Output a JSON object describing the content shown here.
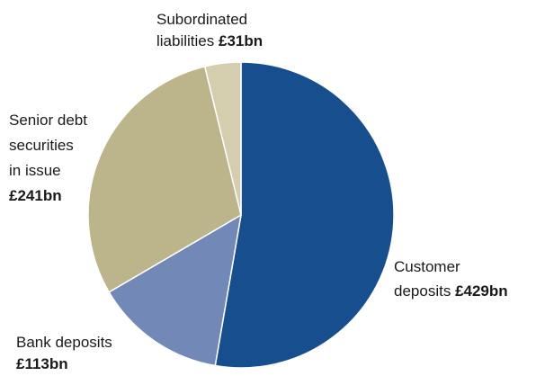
{
  "chart_data": {
    "type": "pie",
    "unit": "£bn",
    "slices": [
      {
        "key": "customer",
        "label": "Customer deposits",
        "value": 429,
        "display": "£429bn",
        "color": "#174f8e"
      },
      {
        "key": "bank",
        "label": "Bank deposits",
        "value": 113,
        "display": "£113bn",
        "color": "#7289b8"
      },
      {
        "key": "senior",
        "label": "Senior debt securities in issue",
        "value": 241,
        "display": "£241bn",
        "color": "#bcb48a"
      },
      {
        "key": "sub",
        "label": "Subordinated liabilities",
        "value": 31,
        "display": "£31bn",
        "color": "#d4cdae"
      }
    ],
    "label_lines": {
      "customer": [
        "Customer",
        "deposits"
      ],
      "bank": [
        "Bank deposits"
      ],
      "senior": [
        "Senior debt",
        "securities",
        "in issue"
      ],
      "sub": [
        "Subordinated",
        "liabilities"
      ]
    }
  }
}
